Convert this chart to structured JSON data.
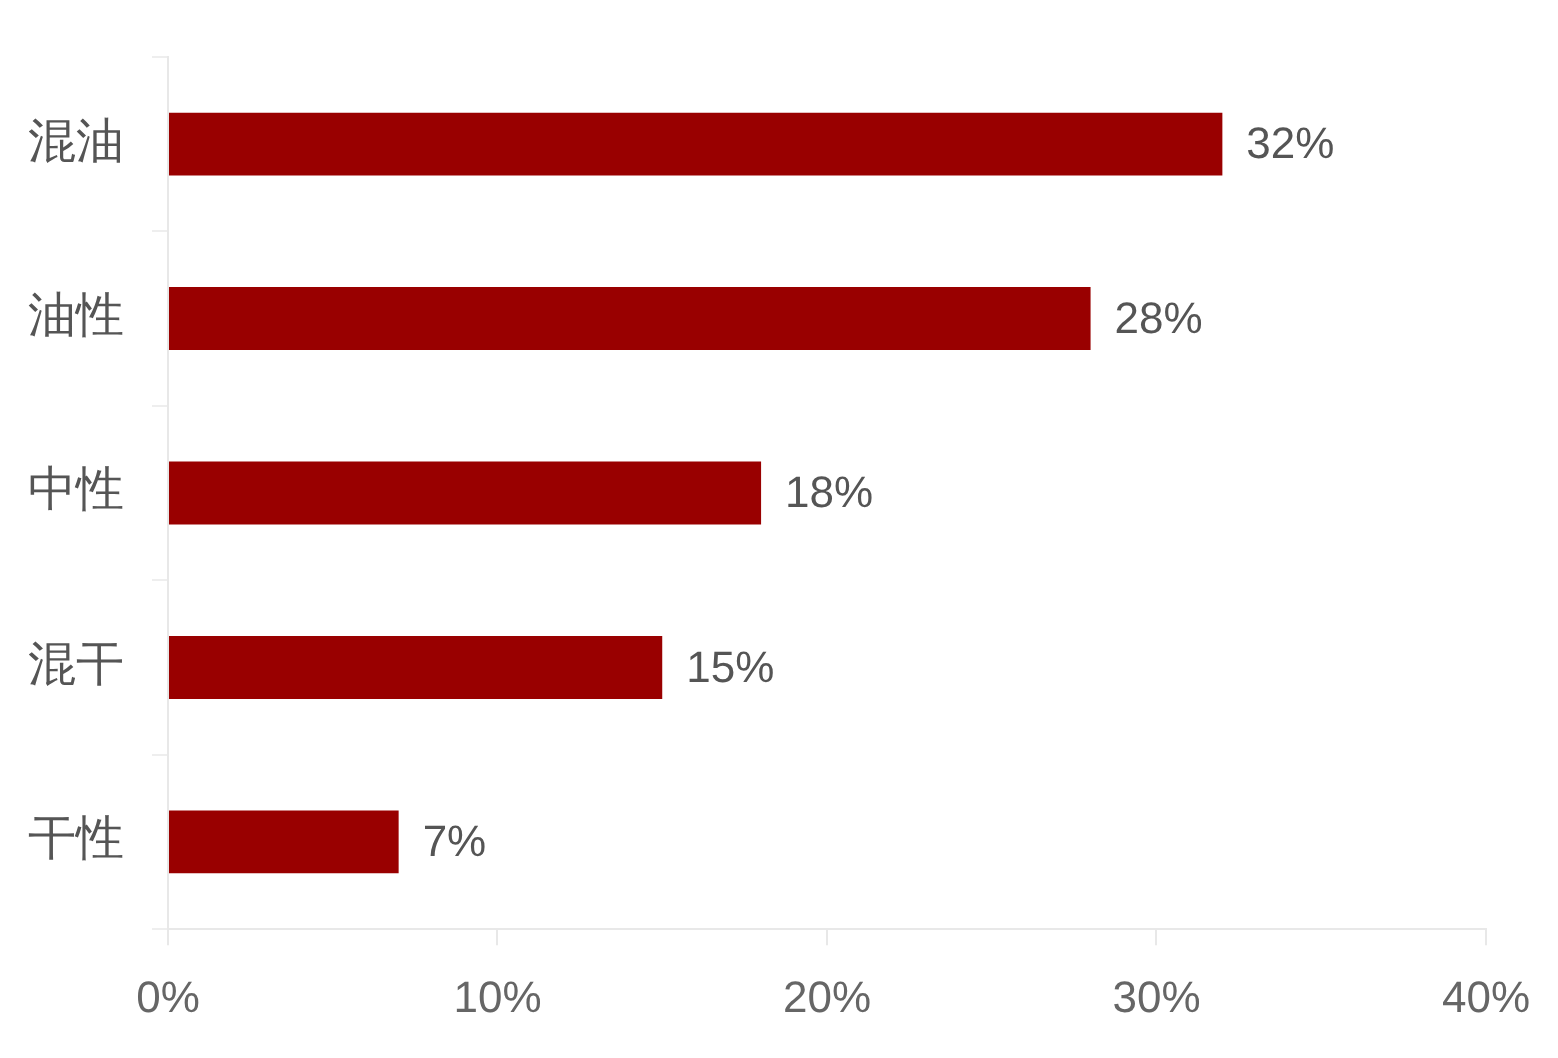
{
  "chart_data": {
    "type": "bar",
    "orientation": "horizontal",
    "categories": [
      "混油",
      "油性",
      "中性",
      "混干",
      "干性"
    ],
    "values": [
      32,
      28,
      18,
      15,
      7
    ],
    "color": "#990000",
    "value_labels": [
      "32%",
      "28%",
      "18%",
      "15%",
      "7%"
    ],
    "xlim": [
      0,
      40
    ],
    "xticks": [
      {
        "value": 0,
        "label": "0%"
      },
      {
        "value": 10,
        "label": "10%"
      },
      {
        "value": 20,
        "label": "20%"
      },
      {
        "value": 30,
        "label": "30%"
      },
      {
        "value": 40,
        "label": "40%"
      }
    ],
    "grid": false,
    "legend": false
  }
}
